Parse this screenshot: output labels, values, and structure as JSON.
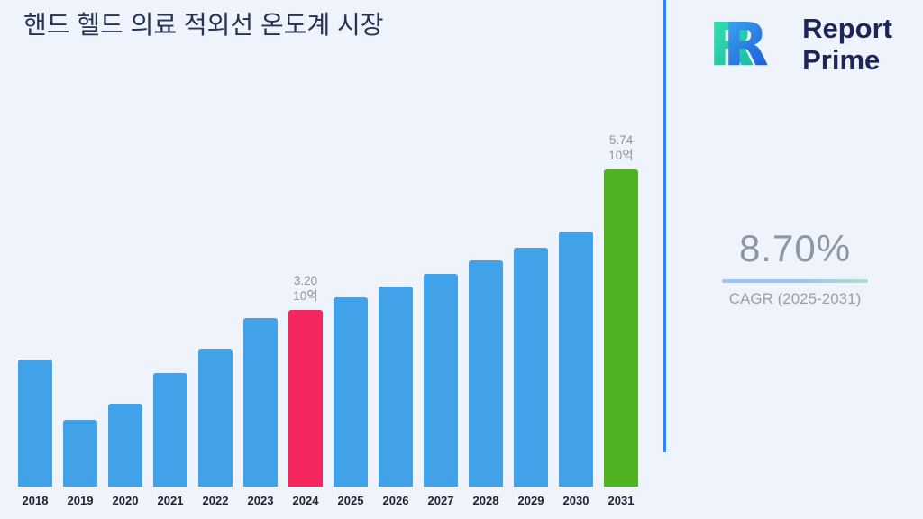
{
  "logo": {
    "mark_letter": "R",
    "line1": "Report",
    "line2": "Prime"
  },
  "cagr": {
    "value": "8.70%",
    "label": "CAGR (2025-2031)"
  },
  "colors": {
    "background": "#eff3fb",
    "divider_accent": "#2e86f7",
    "bar_default": "#41a2ea",
    "bar_highlight_2024": "#f4275f",
    "bar_highlight_2031": "#4fb321",
    "annotation_text": "#8d949d",
    "title_text": "#243253"
  },
  "chart_data": {
    "type": "bar",
    "title": "핸드 헬드 의료 적외선 온도계 시장",
    "xlabel": "",
    "ylabel": "",
    "unit_label": "10억",
    "ylim": [
      0,
      6
    ],
    "grid": false,
    "legend": "none",
    "categories": [
      "2018",
      "2019",
      "2020",
      "2021",
      "2022",
      "2023",
      "2024",
      "2025",
      "2026",
      "2027",
      "2028",
      "2029",
      "2030",
      "2031"
    ],
    "values": [
      2.3,
      1.2,
      1.5,
      2.05,
      2.5,
      3.05,
      3.2,
      3.42,
      3.62,
      3.85,
      4.1,
      4.32,
      4.62,
      5.74
    ],
    "bar_colors": {
      "default": "#41a2ea",
      "2024": "#f4275f",
      "2031": "#4fb321"
    },
    "annotations": [
      {
        "category": "2024",
        "lines": [
          "3.20",
          "10억"
        ]
      },
      {
        "category": "2031",
        "lines": [
          "5.74",
          "10억"
        ]
      }
    ]
  }
}
